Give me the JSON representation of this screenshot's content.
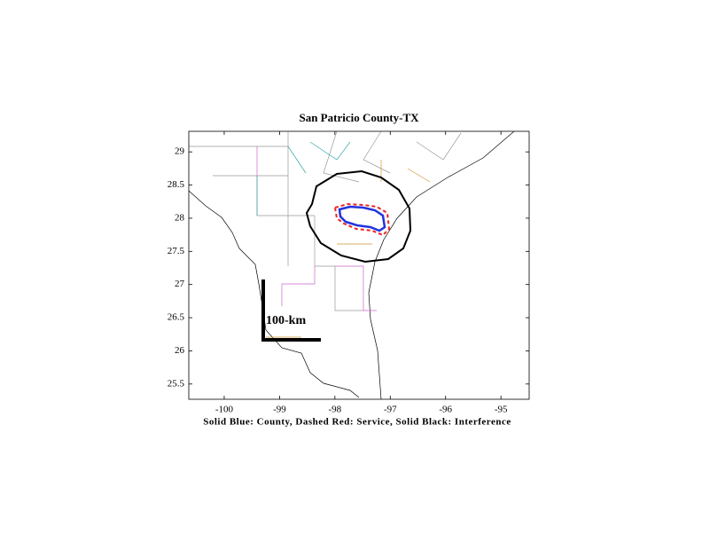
{
  "chart_data": {
    "type": "map",
    "title": "San Patricio County-TX",
    "xlabel": "Solid Blue: County, Dashed Red: Service, Solid Black: Interference",
    "annotation": "100-km",
    "xlim": [
      -100.64,
      -94.49
    ],
    "ylim": [
      25.27,
      29.31
    ],
    "xticks": [
      -100,
      -99,
      -98,
      -97,
      -96,
      -95
    ],
    "yticks": [
      25.5,
      26,
      26.5,
      27,
      27.5,
      28,
      28.5,
      29
    ]
  }
}
